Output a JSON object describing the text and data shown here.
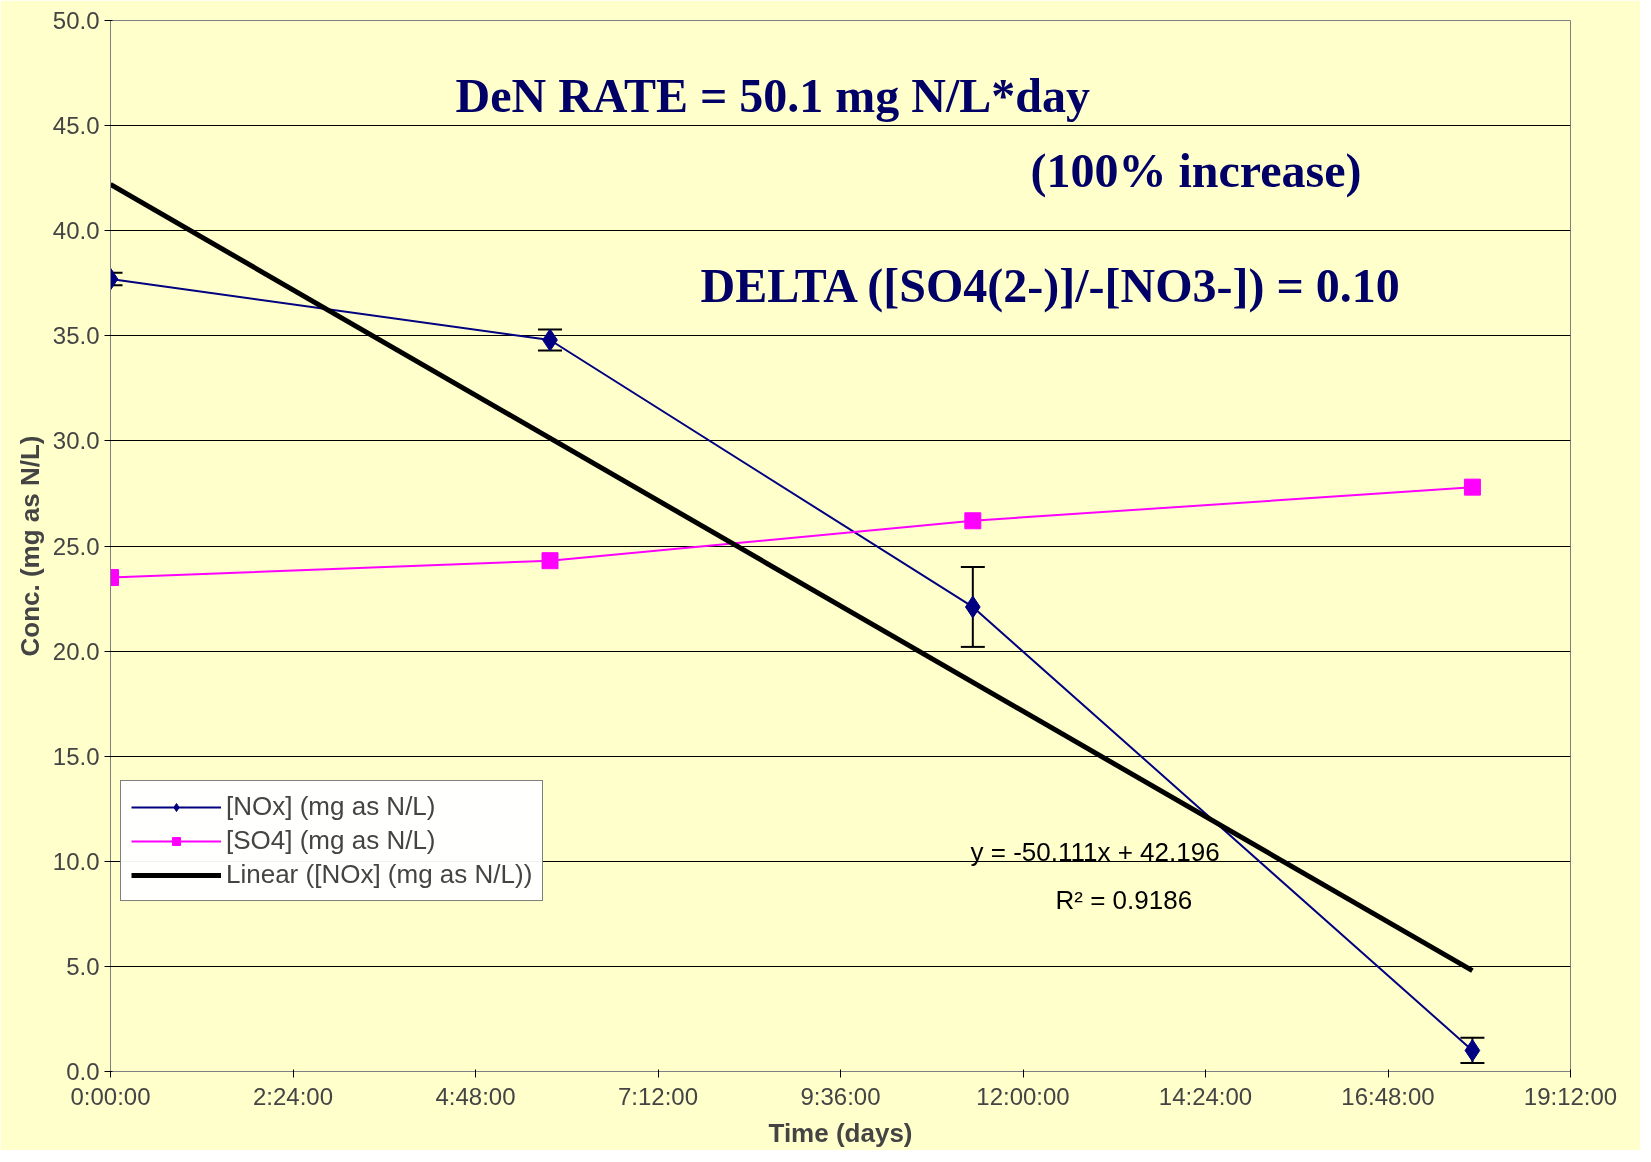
{
  "chart_data": {
    "type": "line",
    "xlabel": "Time (days)",
    "ylabel": "Conc. (mg as N/L)",
    "xlim": [
      0,
      19.2
    ],
    "xticks": [
      {
        "value": 0,
        "label": "0:00:00"
      },
      {
        "value": 2.4,
        "label": "2:24:00"
      },
      {
        "value": 4.8,
        "label": "4:48:00"
      },
      {
        "value": 7.2,
        "label": "7:12:00"
      },
      {
        "value": 9.6,
        "label": "9:36:00"
      },
      {
        "value": 12,
        "label": "12:00:00"
      },
      {
        "value": 14.4,
        "label": "14:24:00"
      },
      {
        "value": 16.8,
        "label": "16:48:00"
      },
      {
        "value": 19.2,
        "label": "19:12:00"
      }
    ],
    "ylim": [
      0,
      50
    ],
    "yticks": [
      {
        "value": 0,
        "label": "0.0"
      },
      {
        "value": 5,
        "label": "5.0"
      },
      {
        "value": 10,
        "label": "10.0"
      },
      {
        "value": 15,
        "label": "15.0"
      },
      {
        "value": 20,
        "label": "20.0"
      },
      {
        "value": 25,
        "label": "25.0"
      },
      {
        "value": 30,
        "label": "30.0"
      },
      {
        "value": 35,
        "label": "35.0"
      },
      {
        "value": 40,
        "label": "40.0"
      },
      {
        "value": 45,
        "label": "45.0"
      },
      {
        "value": 50,
        "label": "50.0"
      }
    ],
    "x": [
      0,
      5.78,
      11.34,
      17.91
    ],
    "series": [
      {
        "name": "[NOx] (mg as N/L)",
        "color": "#000080",
        "values": [
          37.7,
          34.8,
          22.1,
          1.0
        ],
        "errors": [
          0.3,
          0.5,
          1.9,
          0.6
        ],
        "marker": "diamond"
      },
      {
        "name": "[SO4] (mg as N/L)",
        "color": "#ff00ff",
        "values": [
          23.5,
          24.3,
          26.2,
          27.8
        ],
        "marker": "square"
      },
      {
        "name": "Linear ([NOx] (mg as N/L))",
        "color": "#000000",
        "x": [
          0,
          17.91
        ],
        "values": [
          42.2,
          4.8
        ],
        "marker": "none"
      }
    ],
    "annotations": [
      "DeN RATE  = 50.1 mg N/L*day",
      "(100% increase)",
      "DELTA ([SO4(2-)]/-[NO3-]) = 0.10",
      "y = -50.111x + 42.196",
      "R² = 0.9186"
    ],
    "grid": "y",
    "legend": "bottom left",
    "line_style": "solid"
  }
}
